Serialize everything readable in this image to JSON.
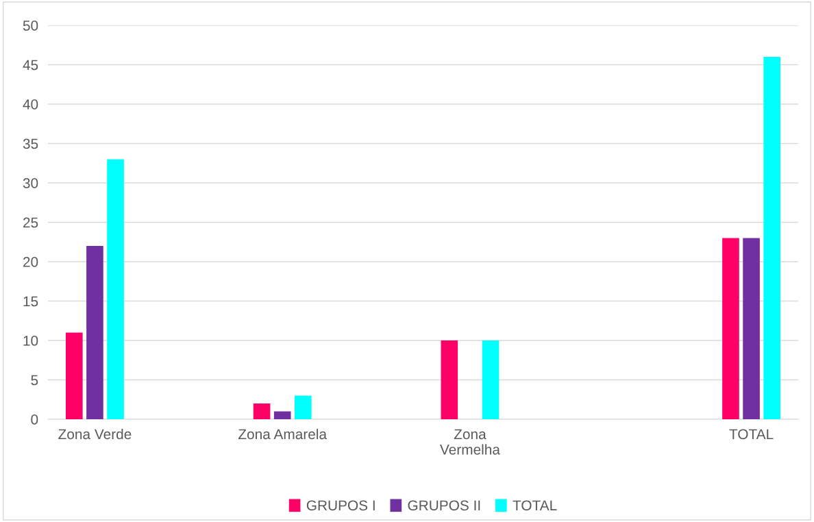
{
  "chart_data": {
    "type": "bar",
    "categories": [
      "Zona Verde",
      null,
      "Zona Amarela",
      null,
      "Zona\nVermelha",
      null,
      null,
      "TOTAL"
    ],
    "series": [
      {
        "name": "GRUPOS I",
        "color": "#ff0066",
        "values": [
          11,
          null,
          2,
          null,
          10,
          null,
          null,
          23
        ]
      },
      {
        "name": "GRUPOS II",
        "color": "#7030a0",
        "values": [
          22,
          null,
          1,
          null,
          0,
          null,
          null,
          23
        ]
      },
      {
        "name": "TOTAL",
        "color": "#00ffff",
        "values": [
          33,
          null,
          3,
          null,
          10,
          null,
          null,
          46
        ]
      }
    ],
    "ylim": [
      0,
      50
    ],
    "yticks": [
      0,
      5,
      10,
      15,
      20,
      25,
      30,
      35,
      40,
      45,
      50
    ],
    "grid": "y",
    "legend": "bottom"
  }
}
